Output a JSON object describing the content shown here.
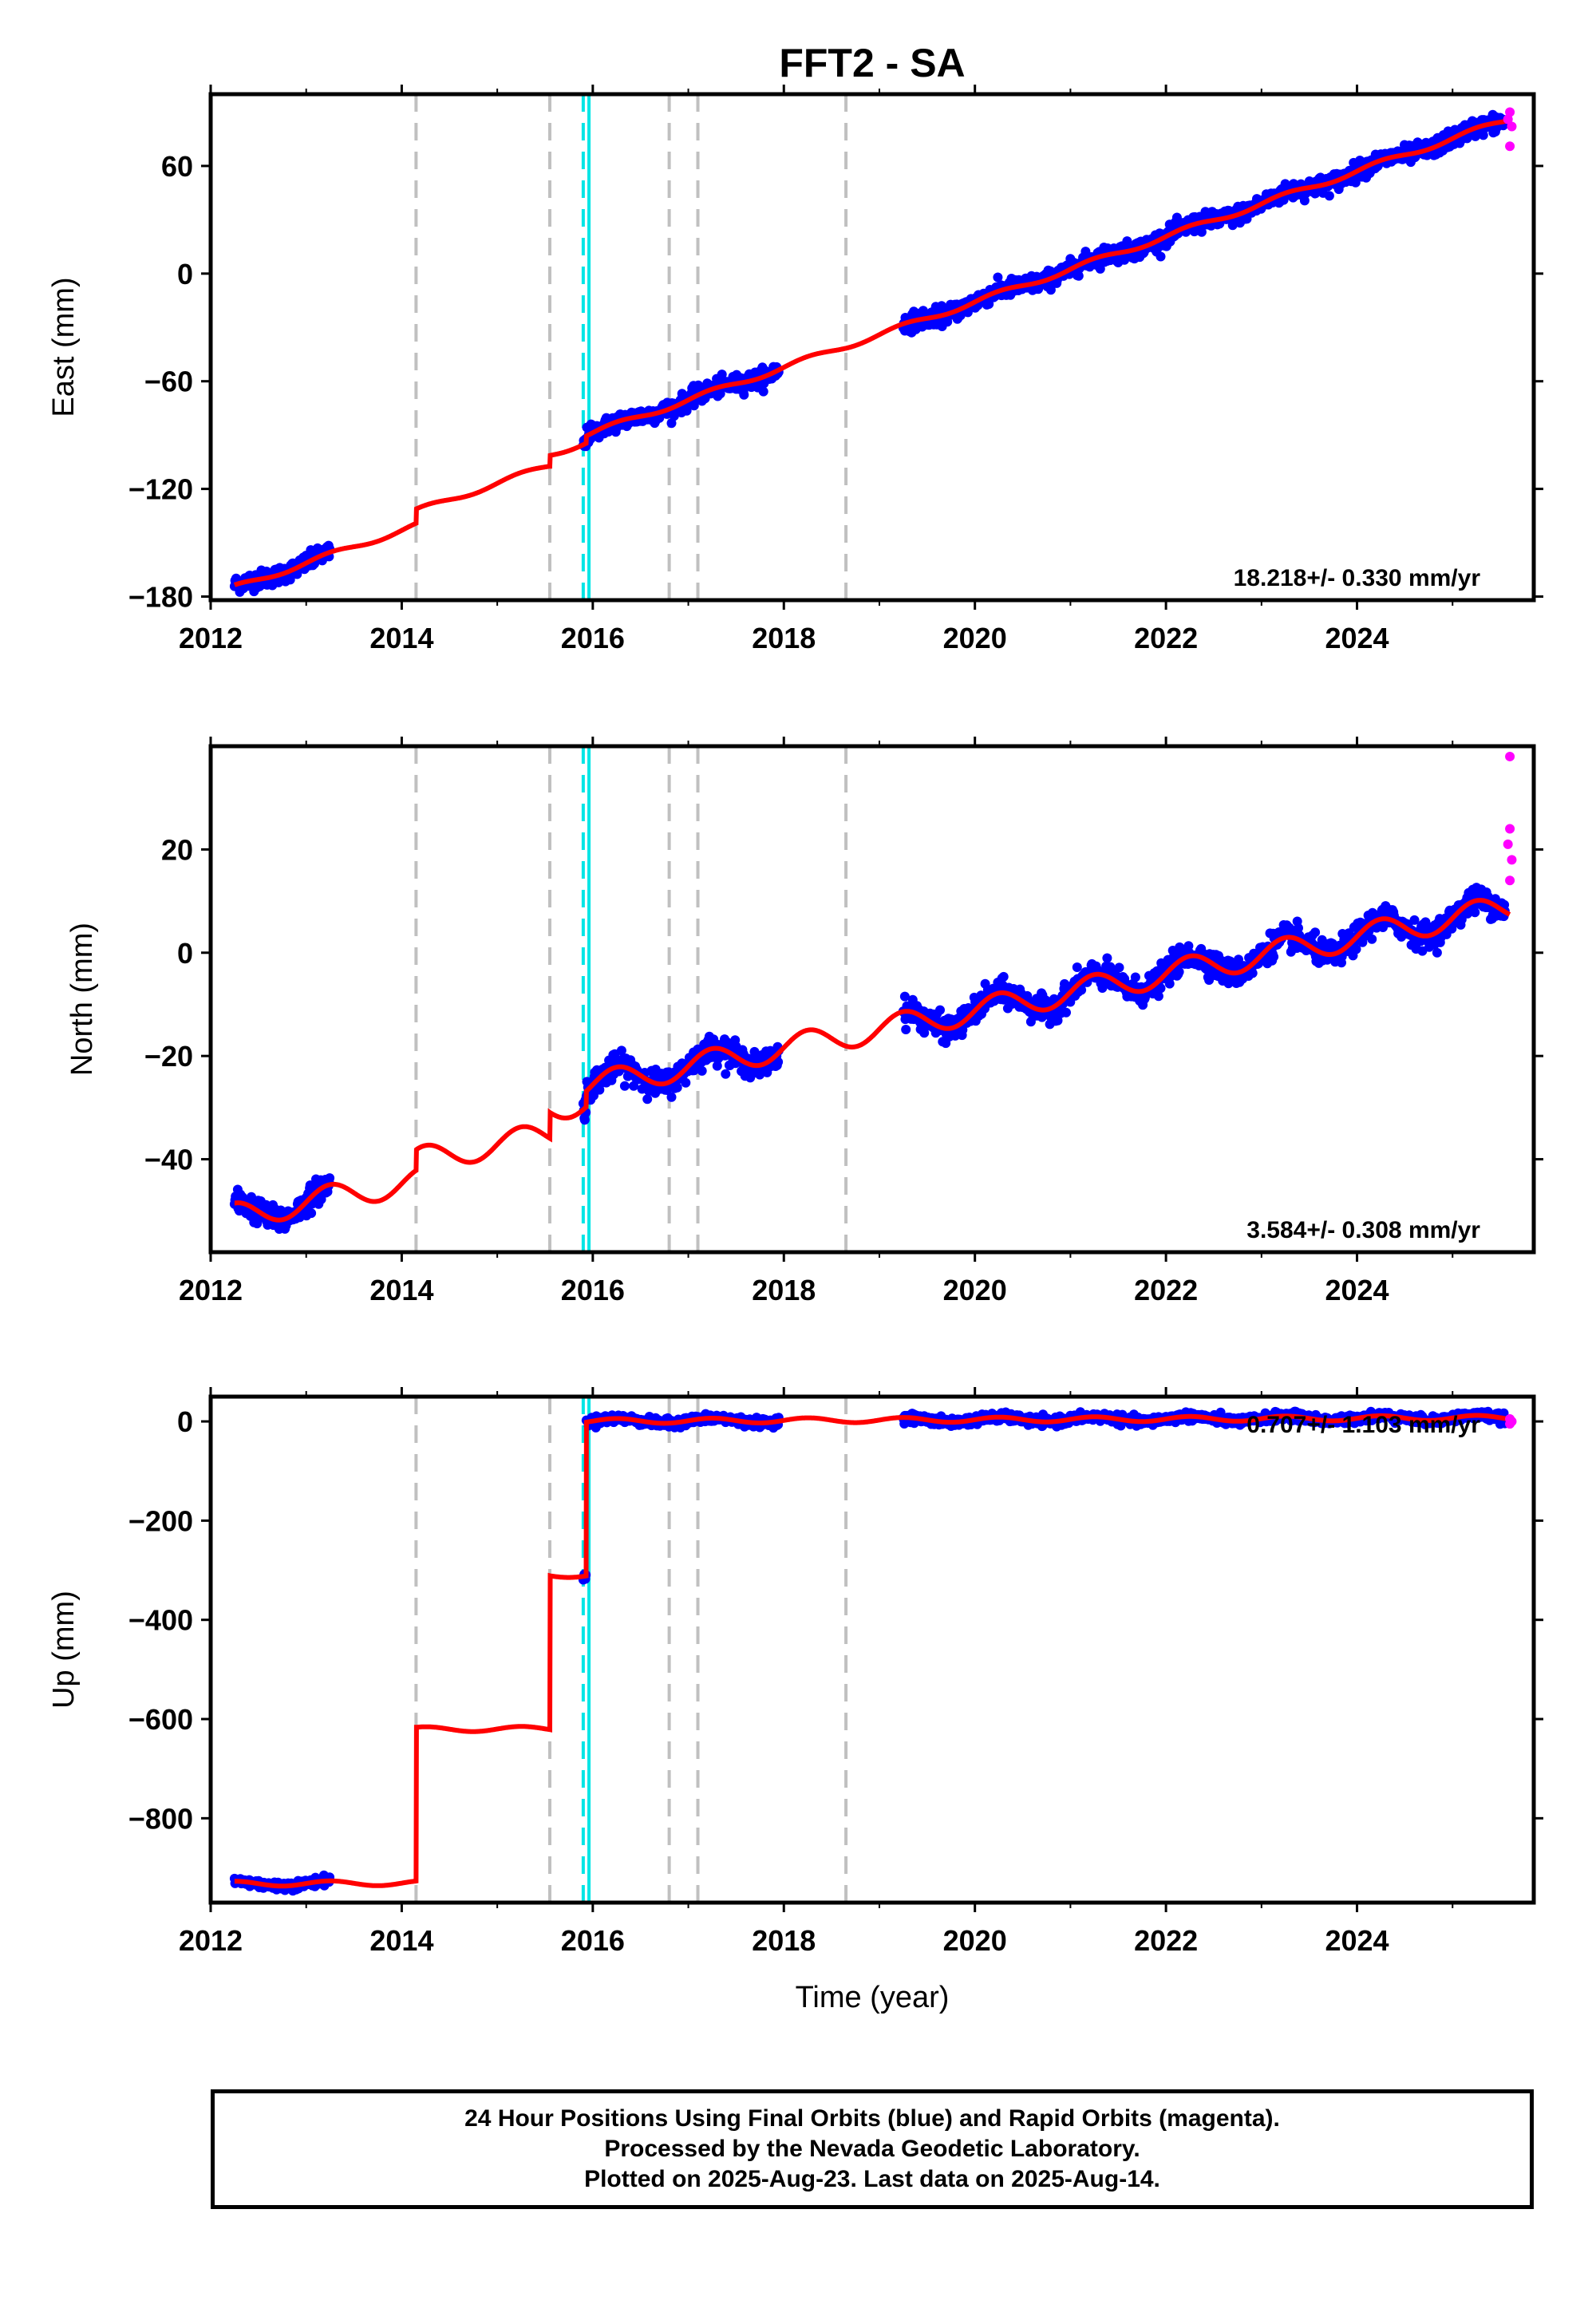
{
  "title": "FFT2 - SA",
  "xlabel": "Time (year)",
  "footer": {
    "line1": "24 Hour Positions Using Final Orbits (blue) and Rapid Orbits (magenta).",
    "line2": "Processed by the Nevada Geodetic Laboratory.",
    "line3": "Plotted on 2025-Aug-23. Last data on 2025-Aug-14."
  },
  "colors": {
    "final_orbits": "#0000ff",
    "rapid_orbits": "#ff00ff",
    "model": "#ff0000",
    "event_line": "#c0c0c0",
    "antenna_line": "#00e5e5"
  },
  "chart_data": [
    {
      "type": "scatter",
      "ylabel": "East (mm)",
      "rate_annotation": "18.218+/- 0.330 mm/yr",
      "xlim": [
        2012.0,
        2025.85
      ],
      "ylim": [
        -182,
        100
      ],
      "x_ticks": [
        "2012",
        "2014",
        "2016",
        "2018",
        "2020",
        "2022",
        "2024"
      ],
      "y_ticks": [
        "60",
        "0",
        "-60",
        "-120",
        "-180"
      ],
      "y_tick_values": [
        60,
        0,
        -60,
        -120,
        -180
      ],
      "event_lines": [
        2014.15,
        2015.55,
        2016.8,
        2017.1,
        2018.65
      ],
      "antenna_lines": [
        2015.9,
        2015.96
      ],
      "data_segments": [
        [
          2012.25,
          2013.25
        ],
        [
          2015.9,
          2017.95
        ],
        [
          2019.25,
          2025.55
        ]
      ],
      "rate_mm_per_yr": 18.218,
      "trend_anchor": [
        2012.25,
        -175
      ],
      "offsets": [
        [
          2014.15,
          8
        ],
        [
          2015.55,
          6
        ],
        [
          2015.93,
          4
        ]
      ],
      "seasonal_amplitude": 1.5,
      "scatter_noise": 4,
      "rapid_points": [
        [
          2025.6,
          90
        ],
        [
          2025.62,
          82
        ],
        [
          2025.6,
          71
        ],
        [
          2025.58,
          86
        ]
      ]
    },
    {
      "type": "scatter",
      "ylabel": "North (mm)",
      "rate_annotation": "3.584+/- 0.308 mm/yr",
      "xlim": [
        2012.0,
        2025.85
      ],
      "ylim": [
        -58,
        40
      ],
      "x_ticks": [
        "2012",
        "2014",
        "2016",
        "2018",
        "2020",
        "2022",
        "2024"
      ],
      "y_ticks": [
        "20",
        "0",
        "-20",
        "-40"
      ],
      "y_tick_values": [
        20,
        0,
        -20,
        -40
      ],
      "event_lines": [
        2014.15,
        2015.55,
        2016.8,
        2017.1,
        2018.65
      ],
      "antenna_lines": [
        2015.9,
        2015.96
      ],
      "data_segments": [
        [
          2012.25,
          2013.25
        ],
        [
          2015.9,
          2017.95
        ],
        [
          2019.25,
          2025.55
        ]
      ],
      "rate_mm_per_yr": 3.584,
      "trend_anchor": [
        2012.25,
        -51
      ],
      "offsets": [
        [
          2014.15,
          4
        ],
        [
          2015.55,
          5
        ],
        [
          2015.93,
          3
        ]
      ],
      "seasonal_amplitude": 2.5,
      "scatter_noise": 2,
      "rapid_points": [
        [
          2025.6,
          38
        ],
        [
          2025.6,
          24
        ],
        [
          2025.62,
          18
        ],
        [
          2025.6,
          14
        ],
        [
          2025.58,
          21
        ]
      ]
    },
    {
      "type": "scatter",
      "ylabel": "Up (mm)",
      "rate_annotation": "0.707+/- 1.103 mm/yr",
      "xlim": [
        2012.0,
        2025.85
      ],
      "ylim": [
        -970,
        50
      ],
      "x_ticks": [
        "2012",
        "2014",
        "2016",
        "2018",
        "2020",
        "2022",
        "2024"
      ],
      "y_ticks": [
        "0",
        "-200",
        "-400",
        "-600",
        "-800"
      ],
      "y_tick_values": [
        0,
        -200,
        -400,
        -600,
        -800
      ],
      "event_lines": [
        2014.15,
        2015.55,
        2016.8,
        2017.1,
        2018.65
      ],
      "antenna_lines": [
        2015.9,
        2015.96
      ],
      "data_segments": [
        [
          2012.25,
          2013.25
        ],
        [
          2015.9,
          2017.95
        ],
        [
          2019.25,
          2025.55
        ]
      ],
      "rate_mm_per_yr": 0.707,
      "trend_anchor": [
        2012.25,
        -932
      ],
      "offsets": [
        [
          2014.15,
          310
        ],
        [
          2015.55,
          310
        ],
        [
          2015.93,
          310
        ]
      ],
      "seasonal_amplitude": 5,
      "scatter_noise": 7,
      "rapid_points": [
        [
          2025.6,
          5
        ],
        [
          2025.6,
          -5
        ],
        [
          2025.62,
          0
        ]
      ]
    }
  ]
}
